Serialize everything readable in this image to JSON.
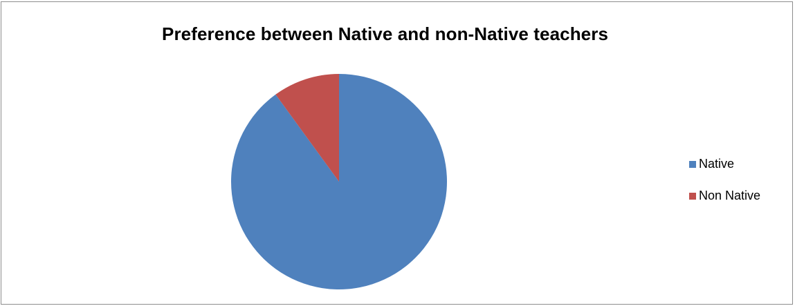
{
  "chart_data": {
    "type": "pie",
    "title": "Preference between Native and non-Native teachers",
    "categories": [
      "Native",
      "Non Native"
    ],
    "values": [
      90,
      10
    ],
    "colors": [
      "#4F81BD",
      "#C0504D"
    ],
    "start_angle_deg": 0,
    "direction": "clockwise",
    "legend_position": "right"
  }
}
